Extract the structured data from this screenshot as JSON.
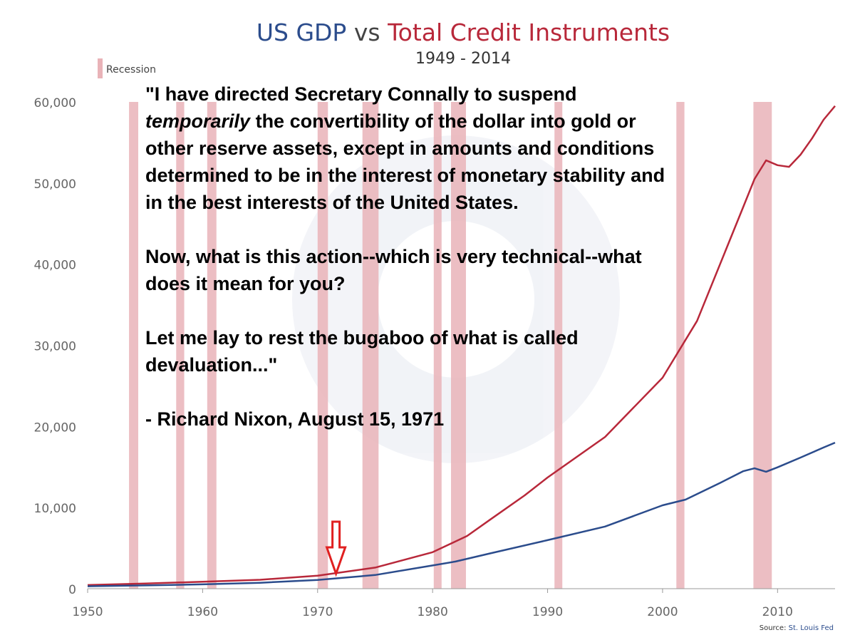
{
  "title_part1": "US GDP",
  "title_vs": "vs",
  "title_part2": "Total Credit Instruments",
  "subtitle": "1949 - 2014",
  "legend_label": "Recession",
  "quote": {
    "p1_a": "\"I have directed Secretary Connally to suspend",
    "p1_em": "temporarily",
    "p1_b": "the convertibility of the dollar into gold or other reserve assets, except in amounts and conditions determined to be in the interest of monetary stability and in the best interests of the United States.",
    "p2": "Now, what is this action--which is very technical--what does it mean for you?",
    "p3": "Let me lay to rest the bugaboo of what is called devaluation...\"",
    "attribution": "- Richard Nixon, August 15, 1971"
  },
  "source_label": "Source:",
  "source_value": "St. Louis Fed",
  "colors": {
    "gdp": "#2b4c8c",
    "credit": "#b8283a",
    "recession": "#e9b3b8",
    "arrow": "#e02020"
  },
  "chart_data": {
    "type": "line",
    "title": "US GDP vs Total Credit Instruments",
    "subtitle": "1949 - 2014",
    "xlim": [
      1950,
      2015
    ],
    "ylim": [
      0,
      60000
    ],
    "xticks": [
      "1950",
      "1960",
      "1970",
      "1980",
      "1990",
      "2000",
      "2010"
    ],
    "yticks": [
      "0",
      "10,000",
      "20,000",
      "30,000",
      "40,000",
      "50,000",
      "60,000"
    ],
    "recessions": [
      [
        1953.6,
        1954.4
      ],
      [
        1957.7,
        1958.4
      ],
      [
        1960.4,
        1961.2
      ],
      [
        1970.0,
        1970.9
      ],
      [
        1973.9,
        1975.3
      ],
      [
        1980.1,
        1980.6
      ],
      [
        1981.6,
        1982.9
      ],
      [
        1990.6,
        1991.2
      ],
      [
        2001.2,
        2001.9
      ],
      [
        2007.9,
        2009.5
      ]
    ],
    "annotation": {
      "type": "arrow",
      "x": 1971.6
    },
    "series": [
      {
        "name": "US GDP",
        "x": [
          1950,
          1955,
          1960,
          1965,
          1970,
          1975,
          1980,
          1982,
          1985,
          1990,
          1995,
          2000,
          2002,
          2005,
          2007,
          2008,
          2009,
          2010,
          2012,
          2014,
          2015
        ],
        "values": [
          300,
          400,
          540,
          730,
          1070,
          1690,
          2860,
          3350,
          4350,
          5980,
          7660,
          10280,
          10980,
          13040,
          14480,
          14840,
          14420,
          14960,
          16160,
          17400,
          18000
        ]
      },
      {
        "name": "Total Credit Instruments",
        "x": [
          1950,
          1955,
          1960,
          1965,
          1970,
          1975,
          1980,
          1983,
          1985,
          1988,
          1990,
          1995,
          2000,
          2003,
          2005,
          2007,
          2008,
          2009,
          2010,
          2011,
          2012,
          2013,
          2014,
          2015
        ],
        "values": [
          450,
          640,
          850,
          1100,
          1600,
          2600,
          4500,
          6500,
          8500,
          11500,
          13700,
          18700,
          26000,
          33000,
          40000,
          47000,
          50500,
          52800,
          52200,
          52000,
          53500,
          55500,
          57800,
          59500
        ]
      }
    ]
  }
}
